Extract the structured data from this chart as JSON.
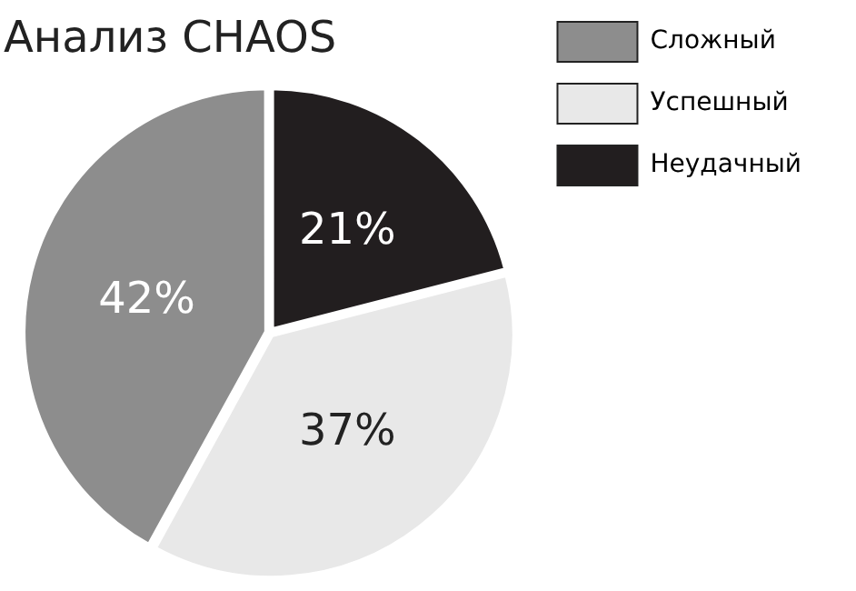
{
  "chart_data": {
    "type": "pie",
    "title": "Анализ CHAOS",
    "categories": [
      "Сложный",
      "Успешный",
      "Неудачный"
    ],
    "values": [
      42,
      37,
      21
    ],
    "colors": [
      "#8d8d8d",
      "#e8e8e8",
      "#221e1f"
    ],
    "value_labels": [
      "42%",
      "37%",
      "21%"
    ],
    "legend": "right"
  }
}
